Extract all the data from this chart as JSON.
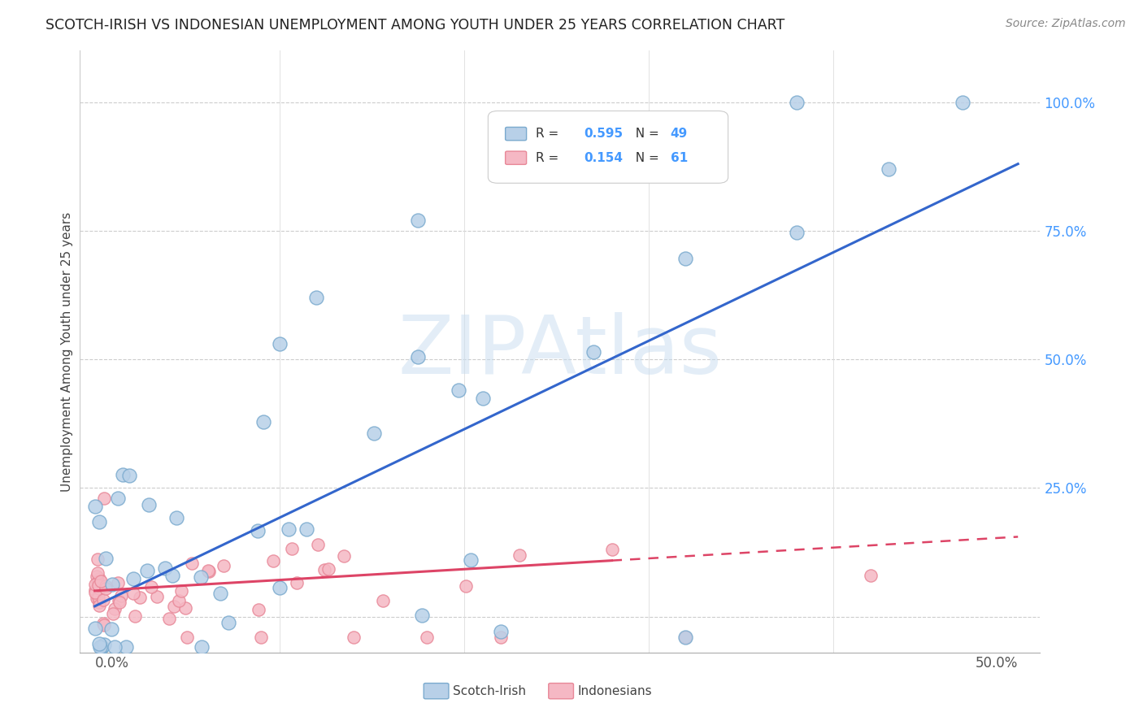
{
  "title": "SCOTCH-IRISH VS INDONESIAN UNEMPLOYMENT AMONG YOUTH UNDER 25 YEARS CORRELATION CHART",
  "source": "Source: ZipAtlas.com",
  "ylabel": "Unemployment Among Youth under 25 years",
  "scotch_irish_R": 0.595,
  "scotch_irish_N": 49,
  "indonesian_R": 0.154,
  "indonesian_N": 61,
  "blue_face": "#B8D0E8",
  "blue_edge": "#7AAACE",
  "pink_face": "#F5B8C4",
  "pink_edge": "#E88898",
  "trend_blue": "#3366CC",
  "trend_pink": "#DD4466",
  "watermark": "ZIPAtlas",
  "watermark_color": "#C8DDF0",
  "ytick_color": "#4499FF",
  "title_color": "#222222",
  "source_color": "#888888",
  "grid_color": "#CCCCCC",
  "xmin": 0.0,
  "xmax": 0.5,
  "ymin": -0.07,
  "ymax": 1.1,
  "trend_blue_x0": 0.0,
  "trend_blue_y0": 0.02,
  "trend_blue_x1": 0.5,
  "trend_blue_y1": 0.88,
  "trend_pink_x0": 0.0,
  "trend_pink_y0": 0.05,
  "trend_pink_xsolid": 0.28,
  "trend_pink_x1": 0.5,
  "trend_pink_y1": 0.155
}
